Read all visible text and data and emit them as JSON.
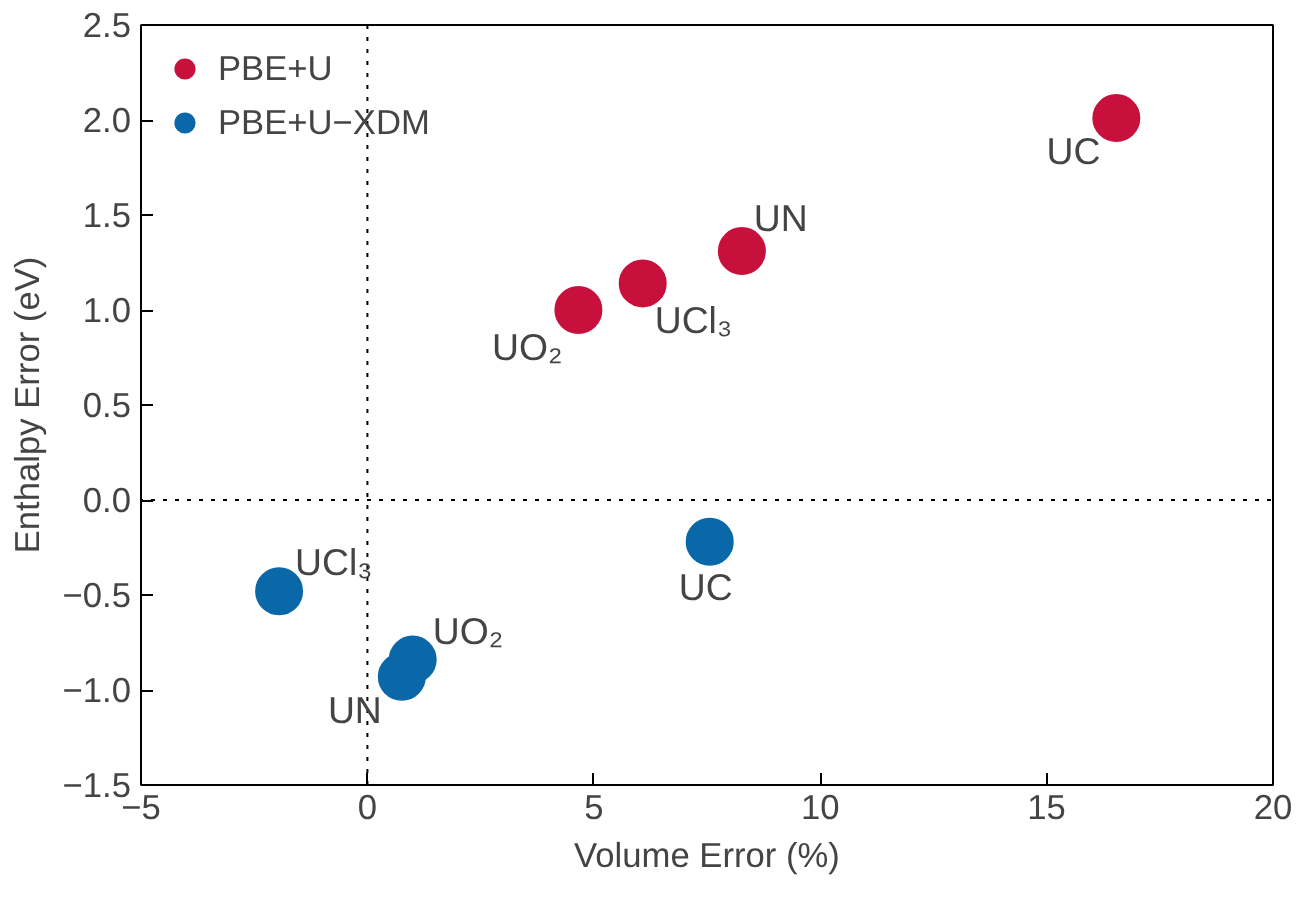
{
  "chart_data": {
    "type": "scatter",
    "xlabel": "Volume Error (%)",
    "ylabel": "Enthalpy Error (eV)",
    "xlim": [
      -5,
      20
    ],
    "ylim": [
      -1.5,
      2.5
    ],
    "xticks": [
      {
        "value": -5,
        "label": "−5"
      },
      0,
      5,
      10,
      15,
      20
    ],
    "yticks": [
      {
        "value": -1.5,
        "label": "−1.5"
      },
      {
        "value": -1,
        "label": "−1.0"
      },
      {
        "value": -0.5,
        "label": "−0.5"
      },
      {
        "value": 0,
        "label": "0.0"
      },
      0.5,
      {
        "value": 1,
        "label": "1.0"
      },
      1.5,
      {
        "value": 2,
        "label": "2.0"
      },
      2.5
    ],
    "grid": false,
    "legend": "top left",
    "marker": "circle",
    "series": [
      {
        "name": "PBE+U",
        "color": "#c8103c",
        "x": [
          4.66,
          6.08,
          8.27,
          16.54
        ],
        "values": [
          1.0,
          1.14,
          1.31,
          2.01
        ]
      },
      {
        "name": "PBE+U−XDM",
        "color": "#0b68a8",
        "x": [
          -1.95,
          1.0,
          0.76,
          7.56
        ],
        "values": [
          -0.48,
          -0.84,
          -0.93,
          -0.22
        ]
      }
    ],
    "ref_lines": [
      {
        "axis": "x",
        "value": 0,
        "line_style": "dotted"
      },
      {
        "axis": "y",
        "value": 0,
        "line_style": "dotted"
      }
    ],
    "annotations": [
      {
        "text": "UO₂",
        "x": 4.66,
        "y": 1.0
      },
      {
        "text": "UCl₃",
        "x": 6.08,
        "y": 1.14
      },
      {
        "text": "UN",
        "x": 8.27,
        "y": 1.31
      },
      {
        "text": "UC",
        "x": 16.54,
        "y": 2.01
      },
      {
        "text": "UCl₃",
        "x": -1.95,
        "y": -0.48
      },
      {
        "text": "UO₂",
        "x": 1.0,
        "y": -0.84
      },
      {
        "text": "UN",
        "x": 0.76,
        "y": -0.93
      },
      {
        "text": "UC",
        "x": 7.56,
        "y": -0.22
      }
    ]
  }
}
